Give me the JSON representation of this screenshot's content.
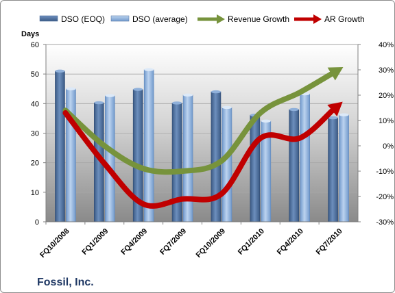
{
  "chart_data": {
    "type": "bar",
    "title": "",
    "company_label": "Fossil, Inc.",
    "categories": [
      "FQ10/2008",
      "FQ1/2009",
      "FQ4/2009",
      "FQ7/2009",
      "FQ10/2009",
      "FQ1/2010",
      "FQ4/2010",
      "FQ7/2010"
    ],
    "ylabel_left": "Days",
    "ylim_left": [
      0,
      60
    ],
    "yticks_left": [
      "0",
      "10",
      "20",
      "30",
      "40",
      "50",
      "60"
    ],
    "ylim_right": [
      -30,
      40
    ],
    "yticks_right": [
      "-30%",
      "-20%",
      "-10%",
      "0%",
      "10%",
      "20%",
      "30%",
      "40%"
    ],
    "legend_position": "top",
    "bar_series": [
      {
        "name": "DSO (EOQ)",
        "axis": "left",
        "color": "#4a6c9b",
        "values": [
          51,
          40.3,
          44.8,
          40.2,
          44,
          36.1,
          38,
          35.2
        ]
      },
      {
        "name": "DSO (average)",
        "axis": "left",
        "color": "#8eb1dd",
        "values": [
          45,
          42.7,
          51.5,
          42.9,
          38.7,
          34.1,
          43.3,
          36.2
        ]
      }
    ],
    "line_series": [
      {
        "name": "Revenue Growth",
        "axis": "right",
        "color": "#77933c",
        "values": [
          14,
          0,
          -9,
          -10,
          -6,
          13,
          21,
          30
        ]
      },
      {
        "name": "AR Growth",
        "axis": "right",
        "color": "#c00000",
        "values": [
          13,
          -7,
          -23,
          -21,
          -19,
          3,
          3,
          16
        ]
      }
    ]
  }
}
